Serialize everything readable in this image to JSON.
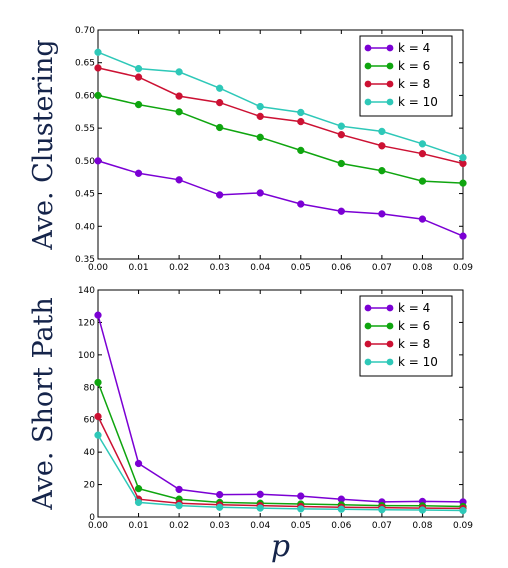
{
  "chart_data": [
    {
      "type": "line",
      "ylabel": "Ave. Clustering",
      "xlabel": "",
      "x": [
        0.0,
        0.01,
        0.02,
        0.03,
        0.04,
        0.05,
        0.06,
        0.07,
        0.08,
        0.09
      ],
      "xticks": [
        "0.00",
        "0.01",
        "0.02",
        "0.03",
        "0.04",
        "0.05",
        "0.06",
        "0.07",
        "0.08",
        "0.09"
      ],
      "xlim": [
        0.0,
        0.09
      ],
      "ylim": [
        0.35,
        0.7
      ],
      "yticks": [
        "0.35",
        "0.40",
        "0.45",
        "0.50",
        "0.55",
        "0.60",
        "0.65",
        "0.70"
      ],
      "ytick_values": [
        0.35,
        0.4,
        0.45,
        0.5,
        0.55,
        0.6,
        0.65,
        0.7
      ],
      "legend_position": "top-right",
      "grid": false,
      "series": [
        {
          "name": "k = 4",
          "color": "#7b00d4",
          "values": [
            0.5,
            0.481,
            0.471,
            0.448,
            0.451,
            0.434,
            0.423,
            0.419,
            0.411,
            0.385
          ]
        },
        {
          "name": "k = 6",
          "color": "#0fa50f",
          "values": [
            0.6,
            0.586,
            0.575,
            0.551,
            0.536,
            0.516,
            0.496,
            0.485,
            0.469,
            0.466
          ]
        },
        {
          "name": "k = 8",
          "color": "#cc1133",
          "values": [
            0.642,
            0.628,
            0.599,
            0.589,
            0.568,
            0.56,
            0.54,
            0.523,
            0.511,
            0.496
          ]
        },
        {
          "name": "k = 10",
          "color": "#2ec8b8",
          "values": [
            0.666,
            0.641,
            0.636,
            0.611,
            0.583,
            0.574,
            0.553,
            0.545,
            0.526,
            0.505
          ]
        }
      ]
    },
    {
      "type": "line",
      "ylabel": "Ave. Short Path",
      "xlabel": "p",
      "x": [
        0.0,
        0.01,
        0.02,
        0.03,
        0.04,
        0.05,
        0.06,
        0.07,
        0.08,
        0.09
      ],
      "xticks": [
        "0.00",
        "0.01",
        "0.02",
        "0.03",
        "0.04",
        "0.05",
        "0.06",
        "0.07",
        "0.08",
        "0.09"
      ],
      "xlim": [
        0.0,
        0.09
      ],
      "ylim": [
        0,
        140
      ],
      "yticks": [
        "0",
        "20",
        "40",
        "60",
        "80",
        "100",
        "120",
        "140"
      ],
      "ytick_values": [
        0,
        20,
        40,
        60,
        80,
        100,
        120,
        140
      ],
      "legend_position": "top-right",
      "grid": false,
      "series": [
        {
          "name": "k = 4",
          "color": "#7b00d4",
          "values": [
            124.5,
            33.0,
            17.0,
            13.8,
            14.0,
            12.9,
            11.0,
            9.3,
            9.6,
            9.3
          ]
        },
        {
          "name": "k = 6",
          "color": "#0fa50f",
          "values": [
            83.0,
            17.5,
            11.0,
            9.0,
            8.5,
            8.0,
            7.5,
            7.0,
            6.9,
            6.5
          ]
        },
        {
          "name": "k = 8",
          "color": "#cc1133",
          "values": [
            62.0,
            11.0,
            8.5,
            7.5,
            7.0,
            6.5,
            6.0,
            5.8,
            5.5,
            5.3
          ]
        },
        {
          "name": "k = 10",
          "color": "#2ec8b8",
          "values": [
            50.5,
            9.0,
            7.0,
            6.0,
            5.5,
            5.0,
            4.8,
            4.5,
            4.3,
            4.0
          ]
        }
      ]
    }
  ]
}
